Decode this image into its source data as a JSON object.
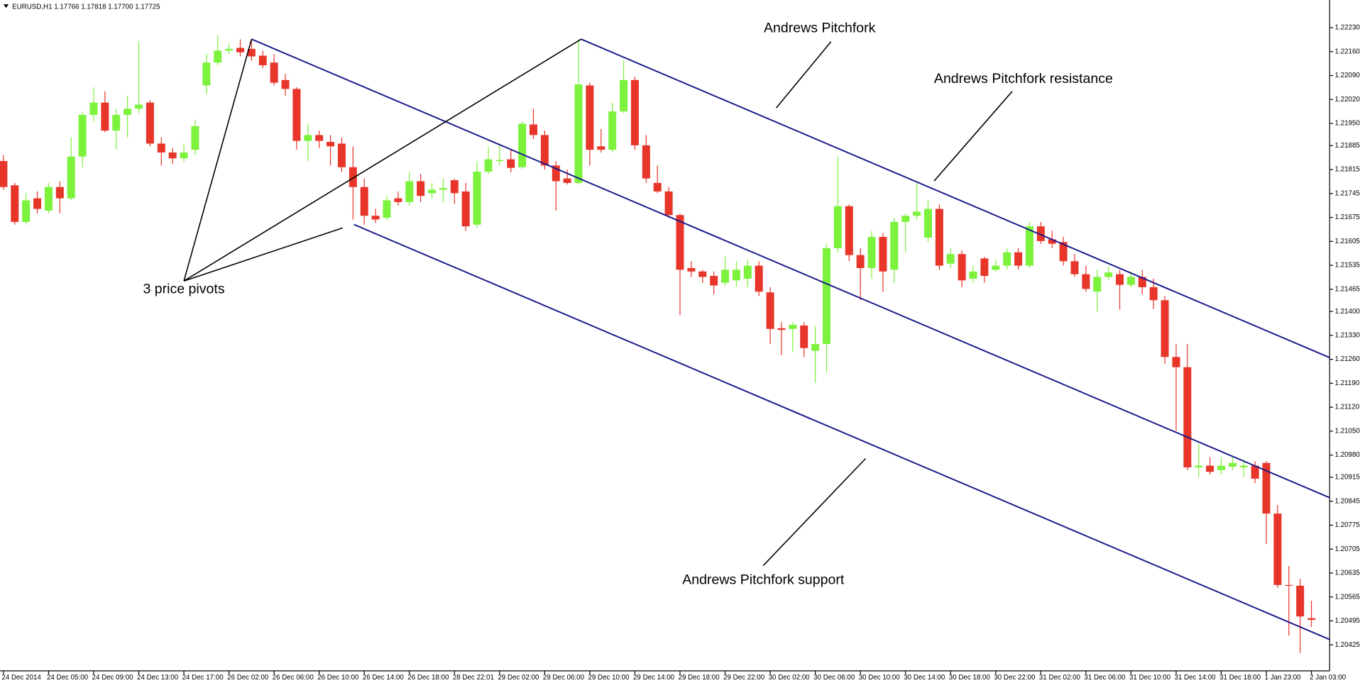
{
  "chart_data": {
    "type": "candlestick",
    "title": "EURUSD,H1 1.17766 1.17818 1.17700 1.17725",
    "annotations": [
      "Andrews Pitchfork",
      "Andrews Pitchfork resistance",
      "Andrews Pitchfork support",
      "3 price pivots"
    ],
    "up_color": "#7cf23c",
    "down_color": "#e8352a",
    "grid": false,
    "ylim": [
      1.20349,
      1.22311
    ],
    "yticks": [
      {
        "value": 1.2223,
        "label": "1.22230"
      },
      {
        "value": 1.2216,
        "label": "1.22160"
      },
      {
        "value": 1.2209,
        "label": "1.22090"
      },
      {
        "value": 1.2202,
        "label": "1.22020"
      },
      {
        "value": 1.2195,
        "label": "1.21950"
      },
      1.21885,
      1.21815,
      1.21745,
      1.21675,
      1.21605,
      1.21535,
      1.21465,
      {
        "value": 1.214,
        "label": "1.21400"
      },
      {
        "value": 1.2133,
        "label": "1.21330"
      },
      {
        "value": 1.2126,
        "label": "1.21260"
      },
      {
        "value": 1.2119,
        "label": "1.21190"
      },
      {
        "value": 1.2112,
        "label": "1.21120"
      },
      {
        "value": 1.2105,
        "label": "1.21050"
      },
      {
        "value": 1.2098,
        "label": "1.20980"
      },
      1.20915,
      1.20845,
      1.20775,
      1.20705,
      1.20635,
      1.20565,
      1.20495,
      1.20425
    ],
    "categories": [
      "24 Dec 2014",
      null,
      null,
      null,
      "24 Dec 05:00",
      null,
      null,
      null,
      "24 Dec 09:00",
      null,
      null,
      null,
      "24 Dec 13:00",
      null,
      null,
      null,
      "24 Dec 17:00",
      null,
      null,
      null,
      "26 Dec 02:00",
      null,
      null,
      null,
      "26 Dec 06:00",
      null,
      null,
      null,
      "26 Dec 10:00",
      null,
      null,
      null,
      "26 Dec 14:00",
      null,
      null,
      null,
      "26 Dec 18:00",
      null,
      null,
      null,
      "28 Dec 22:01",
      null,
      null,
      null,
      "29 Dec 02:00",
      null,
      null,
      null,
      "29 Dec 06:00",
      null,
      null,
      null,
      "29 Dec 10:00",
      null,
      null,
      null,
      "29 Dec 14:00",
      null,
      null,
      null,
      "29 Dec 18:00",
      null,
      null,
      null,
      "29 Dec 22:00",
      null,
      null,
      null,
      "30 Dec 02:00",
      null,
      null,
      null,
      "30 Dec 06:00",
      null,
      null,
      null,
      "30 Dec 10:00",
      null,
      null,
      null,
      "30 Dec 14:00",
      null,
      null,
      null,
      "30 Dec 18:00",
      null,
      null,
      null,
      "30 Dec 22:00",
      null,
      null,
      null,
      "31 Dec 02:00",
      null,
      null,
      null,
      "31 Dec 06:00",
      null,
      null,
      null,
      "31 Dec 10:00",
      null,
      null,
      null,
      "31 Dec 14:00",
      null,
      null,
      null,
      "31 Dec 18:00",
      null,
      null,
      null,
      "1 Jan 23:00",
      null,
      null,
      null,
      "2 Jan 03:00"
    ],
    "open": [
      1.2184,
      1.21769,
      1.21662,
      1.21731,
      1.21695,
      1.21764,
      1.21731,
      1.21853,
      1.21975,
      1.22011,
      1.21929,
      1.21975,
      1.21993,
      1.22011,
      1.21891,
      1.21865,
      1.21848,
      1.21873,
      1.22061,
      1.22128,
      1.22163,
      1.22171,
      1.22168,
      1.22148,
      1.22128,
      1.22077,
      1.22051,
      1.21899,
      1.21916,
      1.21896,
      1.21891,
      1.21822,
      1.21764,
      1.2168,
      1.21674,
      1.21731,
      1.2172,
      1.21781,
      1.21746,
      1.21756,
      1.21784,
      1.21751,
      1.21654,
      1.21809,
      1.2184,
      1.21845,
      1.21822,
      1.21947,
      1.21916,
      1.21827,
      1.21789,
      1.21776,
      1.22061,
      1.21883,
      1.21873,
      1.21985,
      1.22077,
      1.21886,
      1.21776,
      1.21751,
      1.21682,
      1.21527,
      1.21517,
      1.21504,
      1.21484,
      1.21491,
      1.21496,
      1.21534,
      1.21456,
      1.21351,
      1.21349,
      1.21359,
      1.21285,
      1.21305,
      1.21585,
      1.21708,
      1.21565,
      1.21527,
      1.21618,
      1.21522,
      1.21662,
      1.2168,
      1.21616,
      1.217,
      1.2154,
      1.21568,
      1.21496,
      1.21555,
      1.21522,
      1.21534,
      1.21573,
      1.21534,
      1.21649,
      1.21611,
      1.21603,
      1.21547,
      1.21509,
      1.21458,
      1.21501,
      1.21509,
      1.21478,
      1.21501,
      1.21471,
      1.21433,
      1.21267,
      1.21237,
      1.20944,
      1.20949,
      1.20936,
      1.20946,
      1.20944,
      1.20949,
      1.20957,
      1.20809,
      1.206,
      1.20598,
      1.20503
    ],
    "high": [
      1.21858,
      1.21776,
      1.21746,
      1.21751,
      1.21776,
      1.21781,
      1.21909,
      1.21985,
      1.22056,
      1.22044,
      1.21993,
      1.22031,
      1.22191,
      1.22018,
      1.21909,
      1.21878,
      1.21891,
      1.2196,
      1.22153,
      1.22209,
      1.22184,
      1.22196,
      1.22196,
      1.22163,
      1.22153,
      1.22095,
      1.22056,
      1.21949,
      1.21929,
      1.21916,
      1.21909,
      1.21883,
      1.21789,
      1.217,
      1.21738,
      1.21751,
      1.21807,
      1.21802,
      1.21776,
      1.21789,
      1.21789,
      1.21776,
      1.2184,
      1.21883,
      1.21891,
      1.21873,
      1.21955,
      1.21993,
      1.21929,
      1.2184,
      1.21815,
      1.22196,
      1.22069,
      1.21934,
      1.22011,
      1.22133,
      1.22087,
      1.21916,
      1.21827,
      1.21764,
      1.21687,
      1.21547,
      1.21522,
      1.21517,
      1.2156,
      1.21547,
      1.21552,
      1.21547,
      1.21471,
      1.21369,
      1.21369,
      1.21369,
      1.21356,
      1.21598,
      1.21853,
      1.21713,
      1.21585,
      1.21636,
      1.21629,
      1.21674,
      1.21687,
      1.21776,
      1.21725,
      1.21713,
      1.21585,
      1.21578,
      1.21534,
      1.2156,
      1.21552,
      1.21585,
      1.21585,
      1.21662,
      1.21662,
      1.21636,
      1.21618,
      1.21568,
      1.21534,
      1.21522,
      1.21532,
      1.21522,
      1.21517,
      1.21522,
      1.21496,
      1.21445,
      1.21305,
      1.21305,
      1.21013,
      1.20974,
      1.20974,
      1.20974,
      1.20967,
      1.20962,
      1.20962,
      1.20834,
      1.20656,
      1.20618,
      1.20554
    ],
    "low": [
      1.21756,
      1.21654,
      1.21654,
      1.21687,
      1.21687,
      1.21687,
      1.21725,
      1.21822,
      1.21955,
      1.21924,
      1.21873,
      1.21909,
      1.2198,
      1.21883,
      1.21827,
      1.21832,
      1.21837,
      1.21858,
      1.22036,
      1.2212,
      1.22153,
      1.22146,
      1.22133,
      1.22112,
      1.22061,
      1.22031,
      1.21873,
      1.2184,
      1.21878,
      1.21827,
      1.21807,
      1.21669,
      1.21654,
      1.21659,
      1.21667,
      1.2171,
      1.2171,
      1.2172,
      1.21731,
      1.2172,
      1.21715,
      1.21636,
      1.21644,
      1.21802,
      1.21827,
      1.21807,
      1.21817,
      1.21904,
      1.21815,
      1.21695,
      1.21771,
      1.21771,
      1.21827,
      1.21865,
      1.21865,
      1.2198,
      1.21873,
      1.21776,
      1.21746,
      1.21674,
      1.21389,
      1.21501,
      1.21484,
      1.2145,
      1.21476,
      1.21471,
      1.21471,
      1.21445,
      1.21305,
      1.21272,
      1.2128,
      1.21267,
      1.21191,
      1.21221,
      1.21573,
      1.21547,
      1.21433,
      1.21496,
      1.21458,
      1.21484,
      1.21573,
      1.21669,
      1.21603,
      1.21522,
      1.21527,
      1.21471,
      1.21484,
      1.21484,
      1.21517,
      1.21522,
      1.21522,
      1.21527,
      1.21598,
      1.21585,
      1.21534,
      1.21501,
      1.21458,
      1.214,
      1.21491,
      1.21405,
      1.21471,
      1.2145,
      1.21407,
      1.21247,
      1.21051,
      1.20936,
      1.20916,
      1.20923,
      1.20923,
      1.20936,
      1.20916,
      1.20898,
      1.2072,
      1.20592,
      1.20452,
      1.20401,
      1.20478
    ],
    "close": [
      1.21764,
      1.21662,
      1.21725,
      1.217,
      1.21764,
      1.21731,
      1.21853,
      1.21975,
      1.22011,
      1.21929,
      1.21975,
      1.21993,
      1.22005,
      1.21891,
      1.21865,
      1.21848,
      1.21865,
      1.21942,
      1.22128,
      1.22163,
      1.22168,
      1.22158,
      1.22146,
      1.2212,
      1.22069,
      1.22051,
      1.21899,
      1.21916,
      1.21899,
      1.21883,
      1.21822,
      1.21764,
      1.2168,
      1.21669,
      1.21725,
      1.2172,
      1.21781,
      1.21738,
      1.21756,
      1.21761,
      1.21746,
      1.21649,
      1.21809,
      1.21845,
      1.21843,
      1.2182,
      1.21949,
      1.21916,
      1.21827,
      1.21781,
      1.21776,
      1.22064,
      1.21873,
      1.21873,
      1.21985,
      1.22077,
      1.21886,
      1.21789,
      1.21751,
      1.21682,
      1.21522,
      1.21517,
      1.21501,
      1.21476,
      1.21522,
      1.21522,
      1.21534,
      1.21458,
      1.21349,
      1.21346,
      1.21361,
      1.21293,
      1.21305,
      1.21585,
      1.21708,
      1.21565,
      1.21527,
      1.21618,
      1.21517,
      1.21662,
      1.2168,
      1.21692,
      1.217,
      1.21534,
      1.21568,
      1.21491,
      1.21517,
      1.21504,
      1.21534,
      1.21573,
      1.21534,
      1.21649,
      1.21606,
      1.21598,
      1.21547,
      1.21509,
      1.21466,
      1.21501,
      1.21514,
      1.21478,
      1.21501,
      1.21471,
      1.21433,
      1.21267,
      1.21237,
      1.20944,
      1.20949,
      1.20931,
      1.20949,
      1.20957,
      1.20949,
      1.20911,
      1.20809,
      1.206,
      1.20598,
      1.20508,
      1.20498
    ]
  }
}
